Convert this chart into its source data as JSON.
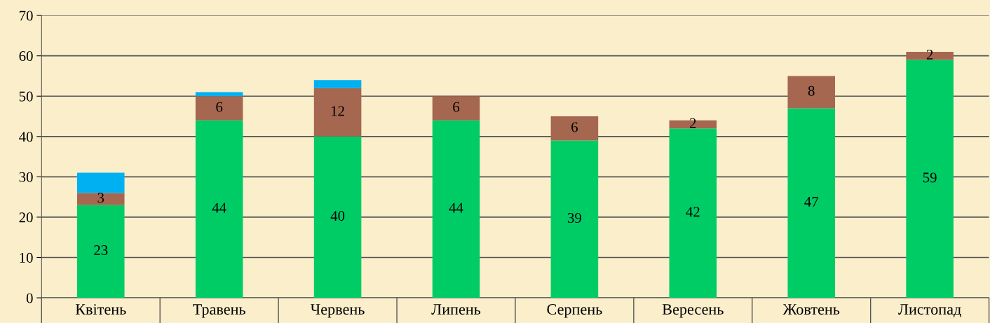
{
  "chart_data": {
    "type": "bar",
    "stacked": true,
    "categories": [
      "Квітень",
      "Травень",
      "Червень",
      "Липень",
      "Серпень",
      "Вересень",
      "Жовтень",
      "Листопад"
    ],
    "series": [
      {
        "color": "#00cc66",
        "values": [
          23,
          44,
          40,
          44,
          39,
          42,
          47,
          59
        ],
        "value_labels": [
          "23",
          "44",
          "40",
          "44",
          "39",
          "42",
          "47",
          "59"
        ]
      },
      {
        "color": "#a5674f",
        "values": [
          3,
          6,
          12,
          6,
          6,
          2,
          8,
          2
        ],
        "value_labels": [
          "3",
          "6",
          "12",
          "6",
          "6",
          "2",
          "8",
          "2"
        ]
      },
      {
        "color": "#00b0f0",
        "values": [
          5,
          1,
          2,
          null,
          null,
          null,
          null,
          null
        ]
      }
    ],
    "ylim": [
      0,
      70
    ],
    "yticks": [
      0,
      10,
      20,
      30,
      40,
      50,
      60,
      70
    ],
    "grid": "y",
    "legend": false
  }
}
